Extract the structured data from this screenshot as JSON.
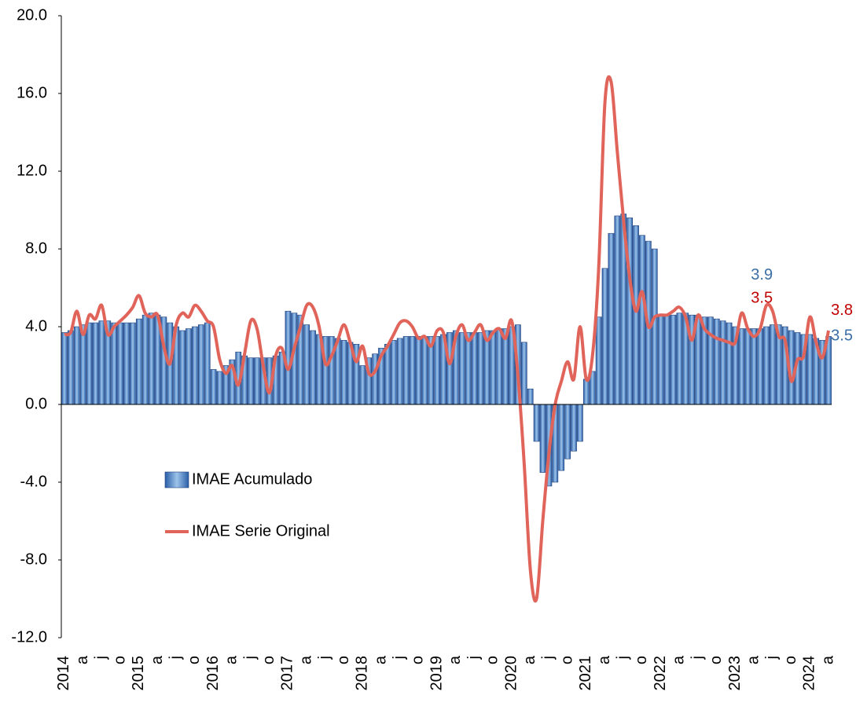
{
  "chart_data": {
    "type": "bar_line",
    "categories": [
      "2014",
      null,
      null,
      "a",
      null,
      null,
      "j",
      null,
      null,
      "o",
      null,
      null,
      "2015",
      null,
      null,
      "a",
      null,
      null,
      "j",
      null,
      null,
      "o",
      null,
      null,
      "2016",
      null,
      null,
      "a",
      null,
      null,
      "j",
      null,
      null,
      "o",
      null,
      null,
      "2017",
      null,
      null,
      "a",
      null,
      null,
      "j",
      null,
      null,
      "o",
      null,
      null,
      "2018",
      null,
      null,
      "a",
      null,
      null,
      "j",
      null,
      null,
      "o",
      null,
      null,
      "2019",
      null,
      null,
      "a",
      null,
      null,
      "j",
      null,
      null,
      "o",
      null,
      null,
      "2020",
      null,
      null,
      "a",
      null,
      null,
      "j",
      null,
      null,
      "o",
      null,
      null,
      "2021",
      null,
      null,
      "a",
      null,
      null,
      "j",
      null,
      null,
      "o",
      null,
      null,
      "2022",
      null,
      null,
      "a",
      null,
      null,
      "j",
      null,
      null,
      "o",
      null,
      null,
      "2023",
      null,
      null,
      "a",
      null,
      null,
      "j",
      null,
      null,
      "o",
      null,
      null,
      "2024",
      null,
      null,
      "a"
    ],
    "series": [
      {
        "name": "IMAE Acumulado",
        "type": "bar",
        "color": "#3a74c0",
        "values": [
          3.7,
          3.8,
          4.0,
          4.1,
          4.2,
          4.2,
          4.3,
          4.3,
          4.2,
          4.2,
          4.2,
          4.2,
          4.4,
          4.6,
          4.7,
          4.6,
          4.5,
          4.2,
          4.0,
          3.8,
          3.9,
          4.0,
          4.1,
          4.2,
          1.8,
          1.7,
          2.0,
          2.3,
          2.7,
          2.5,
          2.4,
          2.4,
          2.4,
          2.4,
          2.5,
          2.7,
          4.8,
          4.7,
          4.6,
          4.1,
          3.8,
          3.6,
          3.5,
          3.5,
          3.4,
          3.3,
          3.2,
          3.1,
          2.0,
          2.4,
          2.6,
          2.9,
          3.1,
          3.3,
          3.4,
          3.5,
          3.5,
          3.5,
          3.5,
          3.5,
          3.5,
          3.6,
          3.7,
          3.8,
          3.7,
          3.7,
          3.7,
          3.7,
          3.8,
          3.8,
          3.9,
          3.9,
          4.0,
          4.1,
          3.2,
          0.8,
          -1.9,
          -3.5,
          -4.2,
          -4.0,
          -3.4,
          -2.8,
          -2.4,
          -1.9,
          1.3,
          1.7,
          4.5,
          7.0,
          8.8,
          9.7,
          9.8,
          9.6,
          9.2,
          8.7,
          8.4,
          8.0,
          4.6,
          4.6,
          4.6,
          4.7,
          4.7,
          4.6,
          4.6,
          4.5,
          4.5,
          4.4,
          4.3,
          4.2,
          4.0,
          3.9,
          3.9,
          3.9,
          3.9,
          4.0,
          4.1,
          4.1,
          4.0,
          3.8,
          3.7,
          3.6,
          3.6,
          3.4,
          3.3,
          3.5
        ],
        "value_labels": [
          null,
          null,
          null,
          null,
          null,
          null,
          null,
          null,
          null,
          null,
          null,
          null,
          null,
          null,
          null,
          null,
          null,
          null,
          null,
          null,
          null,
          null,
          null,
          null,
          null,
          null,
          null,
          null,
          null,
          null,
          null,
          null,
          null,
          null,
          null,
          null,
          null,
          null,
          null,
          null,
          null,
          null,
          null,
          null,
          null,
          null,
          null,
          null,
          null,
          null,
          null,
          null,
          null,
          null,
          null,
          null,
          null,
          null,
          null,
          null,
          null,
          null,
          null,
          null,
          null,
          null,
          null,
          null,
          null,
          null,
          null,
          null,
          null,
          null,
          null,
          null,
          null,
          null,
          null,
          null,
          null,
          null,
          null,
          null,
          null,
          null,
          null,
          null,
          null,
          null,
          null,
          null,
          null,
          null,
          null,
          null,
          null,
          null,
          null,
          null,
          null,
          null,
          null,
          null,
          null,
          null,
          null,
          null,
          null,
          null,
          null,
          "3.9",
          null,
          null,
          null,
          null,
          null,
          null,
          null,
          null,
          null,
          null,
          null,
          "3.5"
        ],
        "label_color": "#3a6ea5"
      },
      {
        "name": "IMAE Serie Original",
        "type": "line",
        "color": "#e0645a",
        "values": [
          3.6,
          3.7,
          4.8,
          3.6,
          4.6,
          4.4,
          5.1,
          3.6,
          4.0,
          4.3,
          4.6,
          5.0,
          5.6,
          4.7,
          4.5,
          4.6,
          3.0,
          2.1,
          4.1,
          4.7,
          4.5,
          5.1,
          4.8,
          4.3,
          4.0,
          2.3,
          1.6,
          2.0,
          1.0,
          2.6,
          4.3,
          3.9,
          2.0,
          0.6,
          2.5,
          2.9,
          1.8,
          2.9,
          4.0,
          5.1,
          5.0,
          4.0,
          2.1,
          2.5,
          3.3,
          4.1,
          3.2,
          2.2,
          3.0,
          1.6,
          1.7,
          2.5,
          3.0,
          3.6,
          4.2,
          4.3,
          4.0,
          3.4,
          3.5,
          3.0,
          3.8,
          3.7,
          2.1,
          3.5,
          4.1,
          3.3,
          3.7,
          4.1,
          3.3,
          3.7,
          3.9,
          3.4,
          4.3,
          1.5,
          -3.0,
          -8.5,
          -10.0,
          -6.0,
          -2.5,
          0.0,
          1.2,
          2.2,
          1.3,
          4.0,
          1.3,
          2.5,
          7.0,
          15.5,
          16.6,
          13.0,
          9.5,
          6.5,
          4.8,
          5.8,
          4.0,
          4.5,
          4.6,
          4.6,
          4.8,
          5.0,
          4.5,
          3.3,
          4.6,
          3.9,
          3.6,
          3.4,
          3.3,
          3.2,
          3.2,
          4.7,
          3.9,
          3.5,
          3.9,
          5.1,
          4.8,
          3.5,
          3.3,
          1.2,
          2.3,
          2.5,
          4.5,
          3.2,
          2.4,
          3.8
        ],
        "value_labels": [
          null,
          null,
          null,
          null,
          null,
          null,
          null,
          null,
          null,
          null,
          null,
          null,
          null,
          null,
          null,
          null,
          null,
          null,
          null,
          null,
          null,
          null,
          null,
          null,
          null,
          null,
          null,
          null,
          null,
          null,
          null,
          null,
          null,
          null,
          null,
          null,
          null,
          null,
          null,
          null,
          null,
          null,
          null,
          null,
          null,
          null,
          null,
          null,
          null,
          null,
          null,
          null,
          null,
          null,
          null,
          null,
          null,
          null,
          null,
          null,
          null,
          null,
          null,
          null,
          null,
          null,
          null,
          null,
          null,
          null,
          null,
          null,
          null,
          null,
          null,
          null,
          null,
          null,
          null,
          null,
          null,
          null,
          null,
          null,
          null,
          null,
          null,
          null,
          null,
          null,
          null,
          null,
          null,
          null,
          null,
          null,
          null,
          null,
          null,
          null,
          null,
          null,
          null,
          null,
          null,
          null,
          null,
          null,
          null,
          null,
          null,
          "3.5",
          null,
          null,
          null,
          null,
          null,
          null,
          null,
          null,
          null,
          null,
          null,
          "3.8"
        ],
        "label_color": "#c00000"
      }
    ],
    "ylim": [
      -12,
      20
    ],
    "yticks": [
      {
        "value": -12,
        "label": "-12.0"
      },
      {
        "value": -8,
        "label": "-8.0"
      },
      {
        "value": -4,
        "label": "-4.0"
      },
      {
        "value": 0,
        "label": "0.0"
      },
      {
        "value": 4,
        "label": "4.0"
      },
      {
        "value": 8,
        "label": "8.0"
      },
      {
        "value": 12,
        "label": "12.0"
      },
      {
        "value": 16,
        "label": "16.0"
      },
      {
        "value": 20,
        "label": "20.0"
      }
    ],
    "grid": false
  }
}
